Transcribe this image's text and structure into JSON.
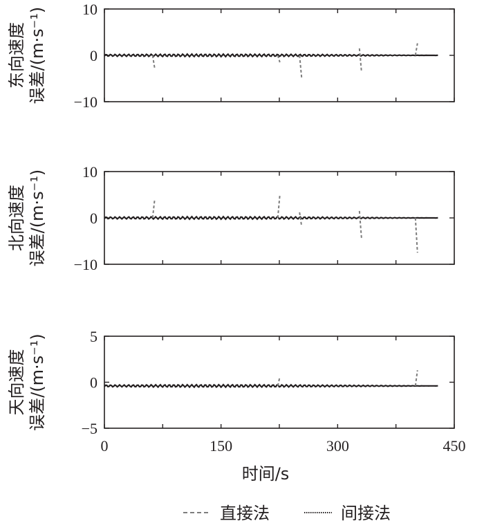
{
  "chart_data": [
    {
      "type": "line",
      "ylabel": "东向速度误差/(m·s⁻¹)",
      "ylabel_lines": [
        "东向速度",
        "误差/(m·s⁻¹)"
      ],
      "xlim": [
        0,
        450
      ],
      "ylim": [
        -10,
        10
      ],
      "yticks": [
        -10,
        0,
        10
      ],
      "ytick_labels": [
        "−10",
        "0",
        "10"
      ],
      "grid": false,
      "series": [
        {
          "name": "直接法",
          "spikes": [
            {
              "x": 62,
              "from": 0,
              "to": -2.8
            },
            {
              "x": 223,
              "from": 0,
              "to": -1.5
            },
            {
              "x": 251,
              "from": 0,
              "to": -4.8
            },
            {
              "x": 328,
              "from": 1.5,
              "to": -3.5
            },
            {
              "x": 400,
              "from": 0,
              "to": 2.6
            }
          ]
        },
        {
          "name": "间接法",
          "level": 0,
          "x_range": [
            0,
            430
          ]
        }
      ]
    },
    {
      "type": "line",
      "ylabel": "北向速度误差/(m·s⁻¹)",
      "ylabel_lines": [
        "北向速度",
        "误差/(m·s⁻¹)"
      ],
      "xlim": [
        0,
        450
      ],
      "ylim": [
        -10,
        10
      ],
      "yticks": [
        -10,
        0,
        10
      ],
      "ytick_labels": [
        "−10",
        "0",
        "10"
      ],
      "grid": false,
      "series": [
        {
          "name": "直接法",
          "spikes": [
            {
              "x": 62,
              "from": 0,
              "to": 4.0
            },
            {
              "x": 223,
              "from": 0,
              "to": 5.0
            },
            {
              "x": 251,
              "from": 1.2,
              "to": -1.8
            },
            {
              "x": 328,
              "from": 1.5,
              "to": -4.3
            },
            {
              "x": 400,
              "from": 0,
              "to": -7.5
            }
          ]
        },
        {
          "name": "间接法",
          "level": 0,
          "x_range": [
            0,
            430
          ]
        }
      ]
    },
    {
      "type": "line",
      "ylabel": "天向速度误差/(m·s⁻¹)",
      "ylabel_lines": [
        "天向速度",
        "误差/(m·s⁻¹)"
      ],
      "xlim": [
        0,
        450
      ],
      "ylim": [
        -5,
        5
      ],
      "yticks": [
        -5,
        0,
        5
      ],
      "ytick_labels": [
        "−5",
        "0",
        "5"
      ],
      "xticks": [
        0,
        150,
        300,
        450
      ],
      "xtick_labels": [
        "0",
        "150",
        "300",
        "450"
      ],
      "xlabel": "时间/s",
      "grid": false,
      "series": [
        {
          "name": "直接法",
          "spikes": [
            {
              "x": 223,
              "from": -0.4,
              "to": 0.6
            },
            {
              "x": 400,
              "from": -0.4,
              "to": 1.3
            }
          ]
        },
        {
          "name": "间接法",
          "level": -0.4,
          "x_range": [
            0,
            430
          ]
        }
      ]
    }
  ],
  "legend": {
    "position": "bottom",
    "items": [
      {
        "label": "直接法",
        "style": "dashed"
      },
      {
        "label": "间接法",
        "style": "dotted"
      }
    ]
  },
  "colors": {
    "axis": "#231f20",
    "direct": "#7d7d7d",
    "indirect": "#231f20"
  }
}
